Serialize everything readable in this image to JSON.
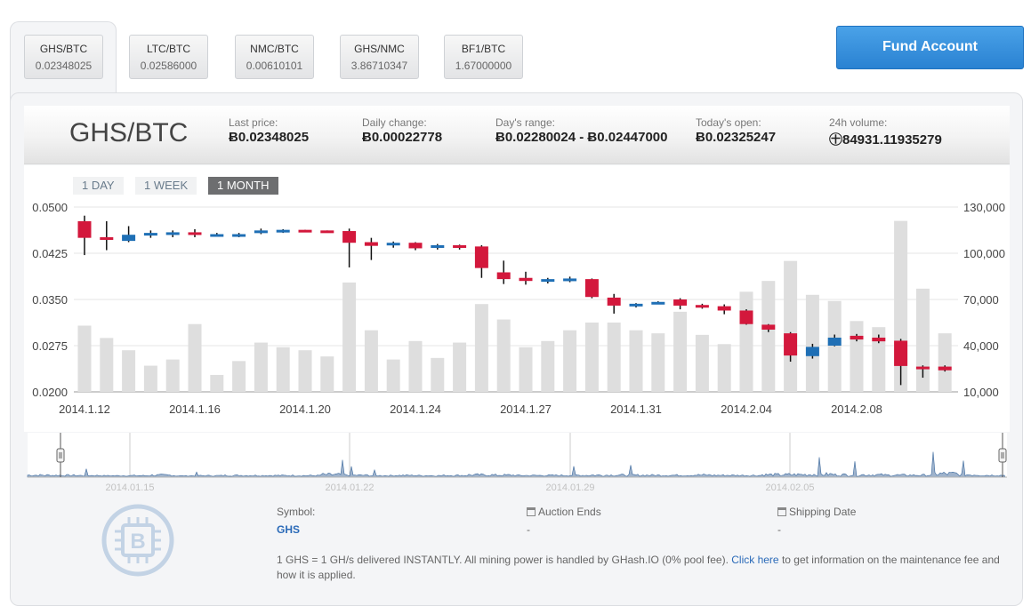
{
  "tabs": [
    {
      "pair": "GHS/BTC",
      "price": "0.02348025",
      "active": true
    },
    {
      "pair": "LTC/BTC",
      "price": "0.02586000",
      "active": false
    },
    {
      "pair": "NMC/BTC",
      "price": "0.00610101",
      "active": false
    },
    {
      "pair": "GHS/NMC",
      "price": "3.86710347",
      "active": false
    },
    {
      "pair": "BF1/BTC",
      "price": "1.67000000",
      "active": false
    }
  ],
  "fund_button": "Fund Account",
  "header": {
    "pair": "GHS/BTC",
    "last_price_label": "Last price:",
    "last_price": "Ƀ0.02348025",
    "daily_change_label": "Daily change:",
    "daily_change": "Ƀ0.00022778",
    "range_label": "Day's range:",
    "range": "Ƀ0.02280024 - Ƀ0.02447000",
    "open_label": "Today's open:",
    "open": "Ƀ0.02325247",
    "volume_label": "24h volume:",
    "volume": "㊉84931.11935279"
  },
  "range_buttons": [
    "1 DAY",
    "1 WEEK",
    "1 MONTH"
  ],
  "active_range": "1 MONTH",
  "colors": {
    "up": "#1f6fb5",
    "down": "#d3183c",
    "volume": "#dedede",
    "accent": "#2a82d2"
  },
  "chart_data": {
    "type": "candlestick",
    "y_left_ticks": [
      "0.0500",
      "0.0425",
      "0.0350",
      "0.0275",
      "0.0200"
    ],
    "y_right_ticks": [
      "130,000",
      "100,000",
      "70,000",
      "40,000",
      "10,000"
    ],
    "ylim_price": [
      0.02,
      0.05
    ],
    "ylim_volume": [
      10000,
      130000
    ],
    "x_tick_labels": [
      {
        "label": "2014.1.12",
        "index": 0
      },
      {
        "label": "2014.1.16",
        "index": 5
      },
      {
        "label": "2014.1.20",
        "index": 10
      },
      {
        "label": "2014.1.24",
        "index": 15
      },
      {
        "label": "2014.1.27",
        "index": 20
      },
      {
        "label": "2014.1.31",
        "index": 25
      },
      {
        "label": "2014.2.04",
        "index": 30
      },
      {
        "label": "2014.2.08",
        "index": 35
      }
    ],
    "candles": [
      {
        "o": 0.0477,
        "h": 0.0486,
        "l": 0.0422,
        "c": 0.045,
        "v": 53000
      },
      {
        "o": 0.0451,
        "h": 0.0477,
        "l": 0.043,
        "c": 0.0447,
        "v": 45000
      },
      {
        "o": 0.0445,
        "h": 0.0469,
        "l": 0.0443,
        "c": 0.0455,
        "v": 37000
      },
      {
        "o": 0.0455,
        "h": 0.0462,
        "l": 0.045,
        "c": 0.0458,
        "v": 27000
      },
      {
        "o": 0.0456,
        "h": 0.0462,
        "l": 0.0451,
        "c": 0.0459,
        "v": 31000
      },
      {
        "o": 0.0459,
        "h": 0.0464,
        "l": 0.0451,
        "c": 0.0456,
        "v": 54000
      },
      {
        "o": 0.0454,
        "h": 0.0458,
        "l": 0.0452,
        "c": 0.0456,
        "v": 21000
      },
      {
        "o": 0.0454,
        "h": 0.0458,
        "l": 0.0451,
        "c": 0.0456,
        "v": 30000
      },
      {
        "o": 0.0458,
        "h": 0.0465,
        "l": 0.0456,
        "c": 0.0462,
        "v": 42000
      },
      {
        "o": 0.046,
        "h": 0.0464,
        "l": 0.0458,
        "c": 0.0463,
        "v": 39000
      },
      {
        "o": 0.0463,
        "h": 0.0463,
        "l": 0.0461,
        "c": 0.0461,
        "v": 37000
      },
      {
        "o": 0.0462,
        "h": 0.0462,
        "l": 0.046,
        "c": 0.046,
        "v": 33000
      },
      {
        "o": 0.0461,
        "h": 0.0465,
        "l": 0.0402,
        "c": 0.0442,
        "v": 81000
      },
      {
        "o": 0.0443,
        "h": 0.045,
        "l": 0.0414,
        "c": 0.0437,
        "v": 50000
      },
      {
        "o": 0.0438,
        "h": 0.0444,
        "l": 0.0434,
        "c": 0.0442,
        "v": 31000
      },
      {
        "o": 0.0442,
        "h": 0.0443,
        "l": 0.043,
        "c": 0.0433,
        "v": 43000
      },
      {
        "o": 0.0434,
        "h": 0.044,
        "l": 0.0431,
        "c": 0.0438,
        "v": 32000
      },
      {
        "o": 0.0438,
        "h": 0.0439,
        "l": 0.0431,
        "c": 0.0434,
        "v": 42000
      },
      {
        "o": 0.0436,
        "h": 0.0438,
        "l": 0.0385,
        "c": 0.0401,
        "v": 67000
      },
      {
        "o": 0.0394,
        "h": 0.0413,
        "l": 0.0375,
        "c": 0.0383,
        "v": 57000
      },
      {
        "o": 0.0385,
        "h": 0.0395,
        "l": 0.0374,
        "c": 0.038,
        "v": 39000
      },
      {
        "o": 0.0379,
        "h": 0.0385,
        "l": 0.0376,
        "c": 0.0383,
        "v": 43000
      },
      {
        "o": 0.038,
        "h": 0.0387,
        "l": 0.0378,
        "c": 0.0384,
        "v": 50000
      },
      {
        "o": 0.0383,
        "h": 0.0384,
        "l": 0.0352,
        "c": 0.0354,
        "v": 55000
      },
      {
        "o": 0.0353,
        "h": 0.0359,
        "l": 0.0327,
        "c": 0.034,
        "v": 55000
      },
      {
        "o": 0.034,
        "h": 0.0344,
        "l": 0.0337,
        "c": 0.0343,
        "v": 50000
      },
      {
        "o": 0.0345,
        "h": 0.0347,
        "l": 0.0343,
        "c": 0.0346,
        "v": 48000
      },
      {
        "o": 0.035,
        "h": 0.0352,
        "l": 0.0334,
        "c": 0.034,
        "v": 62000
      },
      {
        "o": 0.0341,
        "h": 0.0343,
        "l": 0.0335,
        "c": 0.0337,
        "v": 47000
      },
      {
        "o": 0.0339,
        "h": 0.0342,
        "l": 0.0326,
        "c": 0.0332,
        "v": 41000
      },
      {
        "o": 0.0332,
        "h": 0.0334,
        "l": 0.0309,
        "c": 0.031,
        "v": 75000
      },
      {
        "o": 0.0309,
        "h": 0.031,
        "l": 0.0297,
        "c": 0.0301,
        "v": 82000
      },
      {
        "o": 0.0295,
        "h": 0.0297,
        "l": 0.0249,
        "c": 0.0259,
        "v": 95000
      },
      {
        "o": 0.0258,
        "h": 0.0278,
        "l": 0.0254,
        "c": 0.0273,
        "v": 73000
      },
      {
        "o": 0.0275,
        "h": 0.0293,
        "l": 0.0274,
        "c": 0.0288,
        "v": 69000
      },
      {
        "o": 0.0291,
        "h": 0.0294,
        "l": 0.0282,
        "c": 0.0285,
        "v": 56000
      },
      {
        "o": 0.0288,
        "h": 0.0293,
        "l": 0.0279,
        "c": 0.0282,
        "v": 52000
      },
      {
        "o": 0.0283,
        "h": 0.0286,
        "l": 0.0211,
        "c": 0.0242,
        "v": 121000
      },
      {
        "o": 0.0241,
        "h": 0.0243,
        "l": 0.0223,
        "c": 0.0239,
        "v": 77000
      },
      {
        "o": 0.0241,
        "h": 0.0243,
        "l": 0.0233,
        "c": 0.0235,
        "v": 48000
      }
    ]
  },
  "navigator": {
    "labels": [
      "2014.01.15",
      "2014.01.22",
      "2014.01.29",
      "2014.02.05"
    ]
  },
  "info": {
    "symbol_label": "Symbol:",
    "symbol": "GHS",
    "auction_label": "Auction Ends",
    "auction_value": "-",
    "shipping_label": "Shipping Date",
    "shipping_value": "-",
    "note_pre": "1 GHS = 1 GH/s delivered INSTANTLY. All mining power is handled by GHash.IO (0% pool fee).",
    "note_link": "Click here",
    "note_post": "to get information on the maintenance fee and how it is applied."
  }
}
